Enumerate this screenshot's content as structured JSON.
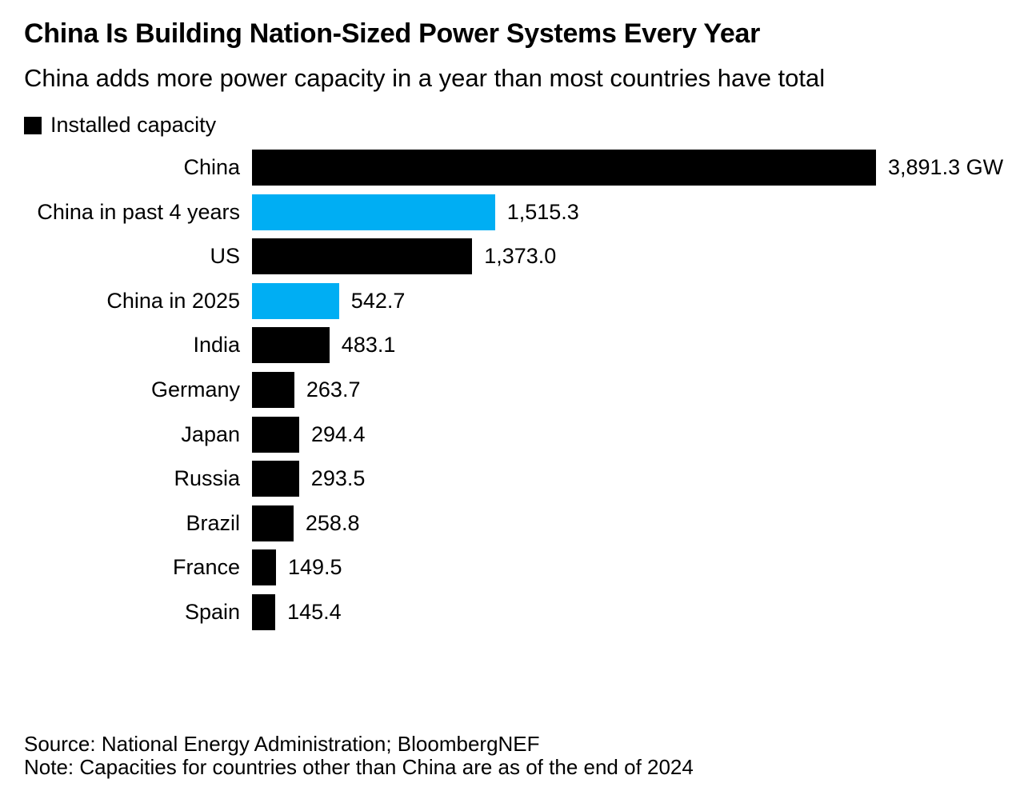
{
  "header": {
    "title": "China Is Building Nation-Sized Power Systems Every Year",
    "subtitle": "China adds more power capacity in a year than most countries have total"
  },
  "legend": {
    "label": "Installed capacity",
    "swatch_color": "#000000"
  },
  "chart_data": {
    "type": "bar",
    "orientation": "horizontal",
    "title": "China Is Building Nation-Sized Power Systems Every Year",
    "subtitle": "China adds more power capacity in a year than most countries have total",
    "series_name": "Installed capacity",
    "unit": "GW",
    "xlim": [
      0,
      3891.3
    ],
    "grid": false,
    "legend_position": "top-left",
    "categories": [
      "China",
      "China in past 4 years",
      "US",
      "China in 2025",
      "India",
      "Germany",
      "Japan",
      "Russia",
      "Brazil",
      "France",
      "Spain"
    ],
    "values": [
      3891.3,
      1515.3,
      1373.0,
      542.7,
      483.1,
      263.7,
      294.4,
      293.5,
      258.8,
      149.5,
      145.4
    ],
    "value_labels": [
      "3,891.3 GW",
      "1,515.3",
      "1,373.0",
      "542.7",
      "483.1",
      "263.7",
      "294.4",
      "293.5",
      "258.8",
      "149.5",
      "145.4"
    ],
    "bar_colors": [
      "#000000",
      "#00AEF3",
      "#000000",
      "#00AEF3",
      "#000000",
      "#000000",
      "#000000",
      "#000000",
      "#000000",
      "#000000",
      "#000000"
    ]
  },
  "colors": {
    "bar_black": "#000000",
    "bar_blue": "#00AEF3",
    "text": "#000000",
    "background": "#FFFFFF"
  },
  "footer": {
    "source": "Source: National Energy Administration; BloombergNEF",
    "note": "Note: Capacities for countries other than China are as of the end of 2024"
  }
}
